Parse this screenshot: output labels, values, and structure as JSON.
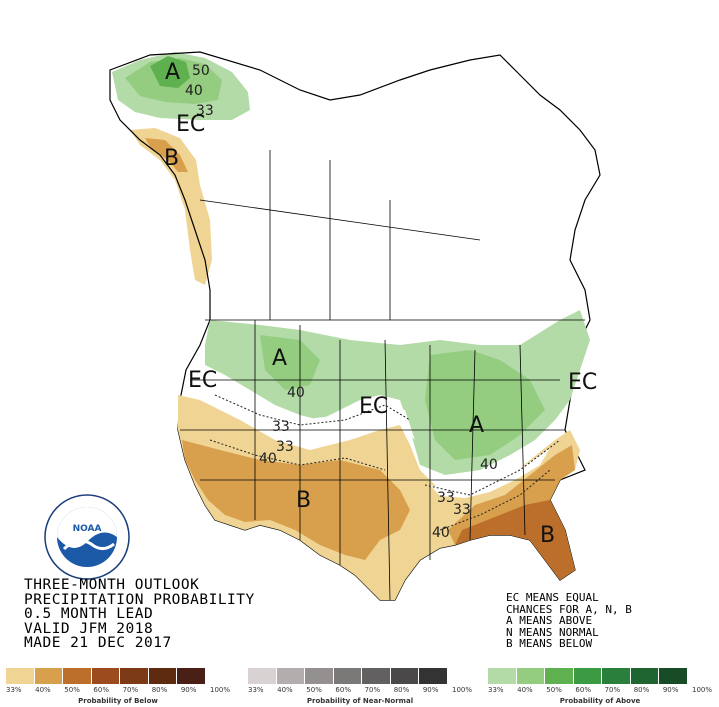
{
  "map": {
    "regions": [
      {
        "label": "A",
        "meaning": "Above"
      },
      {
        "label": "B",
        "meaning": "Below"
      },
      {
        "label": "EC",
        "meaning": "Equal chances"
      }
    ],
    "labels": {
      "alaska_a": "A",
      "alaska_50": "50",
      "alaska_40": "40",
      "alaska_33": "33",
      "alaska_ec": "EC",
      "alaska_b": "B",
      "northwest_ec": "EC",
      "northern_a": "A",
      "northern_40": "40",
      "west_33_a": "33",
      "west_33_b": "33",
      "west_40": "40",
      "southwest_b": "B",
      "central_ec": "EC",
      "east_a": "A",
      "east_40": "40",
      "east_ec": "EC",
      "south_33_a": "33",
      "south_33_b": "33",
      "south_40": "40",
      "southeast_b": "B"
    }
  },
  "title": {
    "line1": "THREE-MONTH OUTLOOK",
    "line2": "PRECIPITATION PROBABILITY",
    "line3": "0.5 MONTH LEAD",
    "line4": "VALID JFM 2018",
    "line5": "MADE 21 DEC 2017"
  },
  "notes": {
    "line1": "EC MEANS EQUAL",
    "line2": "CHANCES FOR A, N, B",
    "line3": "A MEANS ABOVE",
    "line4": "N MEANS NORMAL",
    "line5": "B MEANS BELOW"
  },
  "legend": {
    "below": {
      "caption": "Probability of Below",
      "colors": [
        "#f0d493",
        "#d8a04c",
        "#bc6f2a",
        "#9b4b1e",
        "#7c3a16",
        "#5e2b11",
        "#4a1f15"
      ],
      "ticks": [
        "33%",
        "40%",
        "50%",
        "60%",
        "70%",
        "80%",
        "90%",
        "100%"
      ]
    },
    "normal": {
      "caption": "Probability of Near-Normal",
      "colors": [
        "#d8d2d2",
        "#b3adad",
        "#949090",
        "#7b7878",
        "#626060",
        "#4a4848",
        "#333333"
      ],
      "ticks": [
        "33%",
        "40%",
        "50%",
        "60%",
        "70%",
        "80%",
        "90%",
        "100%"
      ]
    },
    "above": {
      "caption": "Probability of Above",
      "colors": [
        "#b3dba8",
        "#94cd80",
        "#5fb14f",
        "#3c9a42",
        "#2b7f3c",
        "#1f6532",
        "#174c26"
      ],
      "ticks": [
        "33%",
        "40%",
        "50%",
        "60%",
        "70%",
        "80%",
        "90%",
        "100%"
      ]
    }
  },
  "logo": {
    "name": "NOAA",
    "ring_text": "NATIONAL OCEANIC AND ATMOSPHERIC ADMINISTRATION · U.S. DEPARTMENT OF COMMERCE"
  }
}
